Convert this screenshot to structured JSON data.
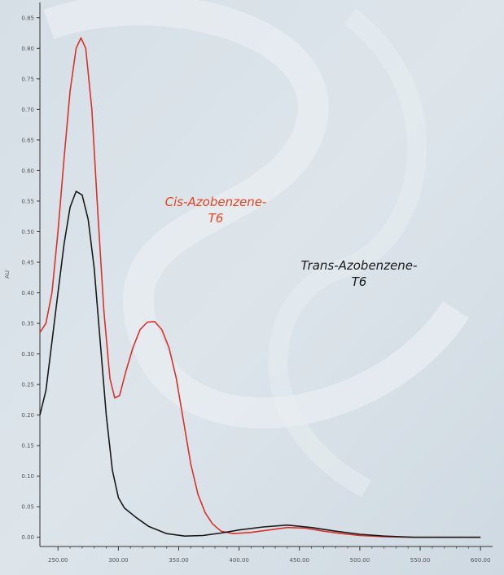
{
  "chart_data": {
    "type": "line",
    "y_label": "AU",
    "xlim": [
      235,
      610
    ],
    "ylim": [
      -0.015,
      0.875
    ],
    "xticks": [
      {
        "value": 250,
        "label": "250.00"
      },
      {
        "value": 300,
        "label": "300.00"
      },
      {
        "value": 350,
        "label": "350.00"
      },
      {
        "value": 400,
        "label": "400.00"
      },
      {
        "value": 450,
        "label": "450.00"
      },
      {
        "value": 500,
        "label": "500.00"
      },
      {
        "value": 550,
        "label": "550.00"
      },
      {
        "value": 600,
        "label": "600.00"
      }
    ],
    "yticks": [
      {
        "value": 0,
        "label": "0.00"
      },
      0.05,
      {
        "value": 0.1,
        "label": "0.10"
      },
      0.15,
      {
        "value": 0.2,
        "label": "0.20"
      },
      0.25,
      {
        "value": 0.3,
        "label": "0.30"
      },
      0.35,
      {
        "value": 0.4,
        "label": "0.40"
      },
      0.45,
      {
        "value": 0.5,
        "label": "0.50"
      },
      0.55,
      {
        "value": 0.6,
        "label": "0.60"
      },
      0.65,
      {
        "value": 0.7,
        "label": "0.70"
      },
      0.75,
      {
        "value": 0.8,
        "label": "0.80"
      },
      0.85
    ],
    "grid": false,
    "series": [
      {
        "color": "#d9322a",
        "x": [
          235,
          240,
          245,
          250,
          255,
          260,
          265,
          269,
          273,
          278,
          283,
          288,
          293,
          297,
          301,
          306,
          312,
          318,
          324,
          330,
          336,
          342,
          348,
          354,
          360,
          366,
          372,
          378,
          385,
          395,
          410,
          425,
          440,
          455,
          470,
          485,
          500,
          520,
          545,
          600
        ],
        "values": [
          0.335,
          0.35,
          0.4,
          0.5,
          0.62,
          0.73,
          0.8,
          0.817,
          0.8,
          0.7,
          0.53,
          0.37,
          0.26,
          0.228,
          0.232,
          0.27,
          0.31,
          0.34,
          0.352,
          0.353,
          0.34,
          0.31,
          0.26,
          0.19,
          0.12,
          0.07,
          0.04,
          0.022,
          0.01,
          0.006,
          0.008,
          0.012,
          0.016,
          0.015,
          0.01,
          0.006,
          0.003,
          0.001,
          0,
          0
        ]
      },
      {
        "color": "#1a1a1a",
        "x": [
          235,
          240,
          245,
          250,
          255,
          260,
          265,
          270,
          275,
          280,
          285,
          290,
          295,
          300,
          305,
          315,
          325,
          340,
          355,
          370,
          385,
          400,
          420,
          440,
          460,
          480,
          500,
          520,
          545,
          600
        ],
        "values": [
          0.2,
          0.24,
          0.32,
          0.4,
          0.48,
          0.54,
          0.566,
          0.56,
          0.52,
          0.44,
          0.32,
          0.2,
          0.11,
          0.065,
          0.048,
          0.032,
          0.018,
          0.006,
          0.002,
          0.003,
          0.007,
          0.012,
          0.017,
          0.02,
          0.016,
          0.01,
          0.005,
          0.002,
          0,
          0
        ]
      }
    ],
    "annotations": [
      {
        "lines": [
          "Cis-Azobenzene-",
          "T6"
        ],
        "color": "#e8431f"
      },
      {
        "lines": [
          "Trans-Azobenzene-",
          "T6"
        ],
        "color": "#1a1a1a"
      }
    ]
  }
}
